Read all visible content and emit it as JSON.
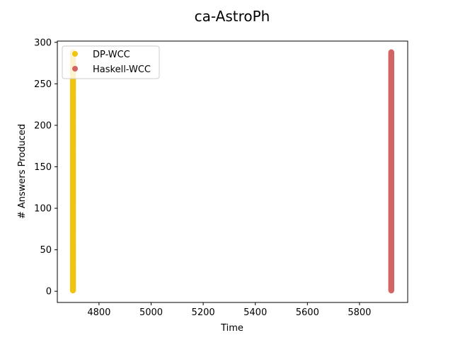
{
  "chart_data": {
    "type": "scatter",
    "title": "ca-AstroPh",
    "xlabel": "Time",
    "ylabel": "# Answers Produced",
    "xlim": [
      4640,
      5985
    ],
    "ylim": [
      -13.5,
      301.5
    ],
    "xticks": [
      4800,
      5000,
      5200,
      5400,
      5600,
      5800
    ],
    "yticks": [
      0,
      50,
      100,
      150,
      200,
      250,
      300
    ],
    "legend_position": "upper-left",
    "grid": false,
    "series": [
      {
        "name": "DP-WCC",
        "color": "#f0c40f",
        "x_value": 4700,
        "y_min": 1,
        "y_max": 288
      },
      {
        "name": "Haskell-WCC",
        "color": "#d46464",
        "x_value": 5922,
        "y_min": 1,
        "y_max": 288
      }
    ]
  }
}
